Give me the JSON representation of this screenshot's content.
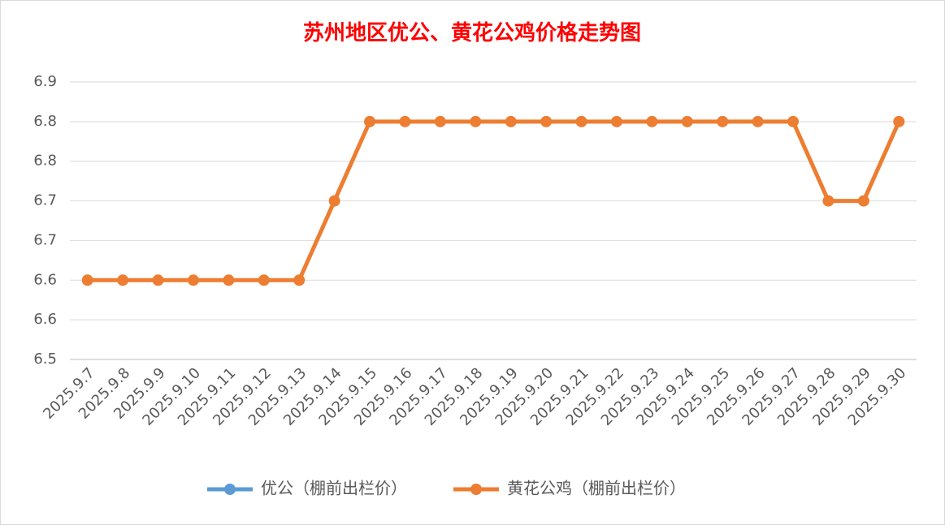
{
  "chart_data": {
    "type": "line",
    "title": "苏州地区优公、黄花公鸡价格走势图",
    "categories": [
      "2025.9.7",
      "2025.9.8",
      "2025.9.9",
      "2025.9.10",
      "2025.9.11",
      "2025.9.12",
      "2025.9.13",
      "2025.9.14",
      "2025.9.15",
      "2025.9.16",
      "2025.9.17",
      "2025.9.18",
      "2025.9.19",
      "2025.9.20",
      "2025.9.21",
      "2025.9.22",
      "2025.9.23",
      "2025.9.24",
      "2025.9.25",
      "2025.9.26",
      "2025.9.27",
      "2025.9.28",
      "2025.9.29",
      "2025.9.30"
    ],
    "series": [
      {
        "name": "优公（棚前出栏价）",
        "color": "#5b9bd5",
        "values": [
          null,
          null,
          null,
          null,
          null,
          null,
          null,
          null,
          null,
          null,
          null,
          null,
          null,
          null,
          null,
          null,
          null,
          null,
          null,
          null,
          null,
          null,
          null,
          null
        ]
      },
      {
        "name": "黄花公鸡（棚前出栏价）",
        "color": "#ed7d31",
        "values": [
          6.6,
          6.6,
          6.6,
          6.6,
          6.6,
          6.6,
          6.6,
          6.7,
          6.8,
          6.8,
          6.8,
          6.8,
          6.8,
          6.8,
          6.8,
          6.8,
          6.8,
          6.8,
          6.8,
          6.8,
          6.8,
          6.7,
          6.7,
          6.8
        ]
      }
    ],
    "ylim": [
      6.5,
      6.85
    ],
    "yticks": [
      6.5,
      {
        "value": 6.55,
        "label": "6.6"
      },
      6.6,
      {
        "value": 6.65,
        "label": "6.7"
      },
      6.7,
      {
        "value": 6.75,
        "label": "6.8"
      },
      6.8,
      {
        "value": 6.85,
        "label": "6.9"
      }
    ],
    "grid": true,
    "legend": "bottom"
  }
}
